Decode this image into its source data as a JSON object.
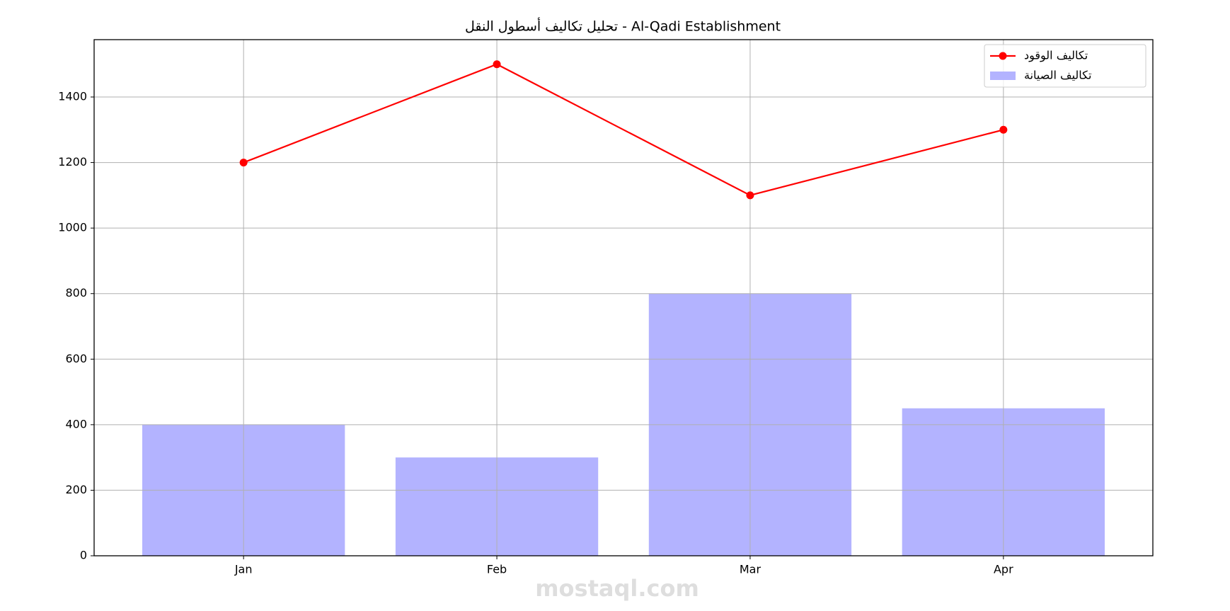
{
  "chart_data": {
    "type": "combo",
    "title": "تحليل تكاليف أسطول النقل - Al-Qadi Establishment",
    "categories": [
      "Jan",
      "Feb",
      "Mar",
      "Apr"
    ],
    "series": [
      {
        "name": "تكاليف الوقود",
        "type": "line",
        "color": "#ff0000",
        "values": [
          1200,
          1500,
          1100,
          1300
        ]
      },
      {
        "name": "تكاليف الصيانة",
        "type": "bar",
        "color": "#b3b3ff",
        "values": [
          400,
          300,
          800,
          450
        ]
      }
    ],
    "ylim": [
      0,
      1575
    ],
    "yticks": [
      0,
      200,
      400,
      600,
      800,
      1000,
      1200,
      1400
    ],
    "grid": true,
    "legend": "upper right",
    "watermark": "mostaql.com"
  }
}
